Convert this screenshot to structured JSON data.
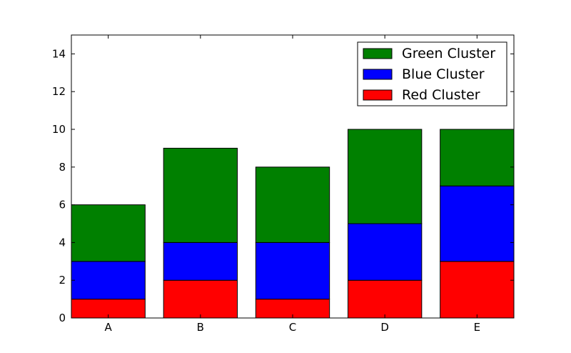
{
  "chart_data": {
    "type": "bar",
    "stacked": true,
    "categories": [
      "A",
      "B",
      "C",
      "D",
      "E"
    ],
    "series": [
      {
        "name": "Red Cluster",
        "color": "#ff0000",
        "values": [
          1,
          2,
          1,
          2,
          3
        ]
      },
      {
        "name": "Blue Cluster",
        "color": "#0000ff",
        "values": [
          2,
          2,
          3,
          3,
          4
        ]
      },
      {
        "name": "Green Cluster",
        "color": "#008000",
        "values": [
          3,
          5,
          4,
          5,
          3
        ]
      }
    ],
    "title": "",
    "xlabel": "",
    "ylabel": "",
    "ylim": [
      0,
      15
    ],
    "yticks": [
      0,
      2,
      4,
      6,
      8,
      10,
      12,
      14
    ],
    "grid": false,
    "legend_position": "top-right",
    "legend_order": [
      "Green Cluster",
      "Blue Cluster",
      "Red Cluster"
    ]
  }
}
